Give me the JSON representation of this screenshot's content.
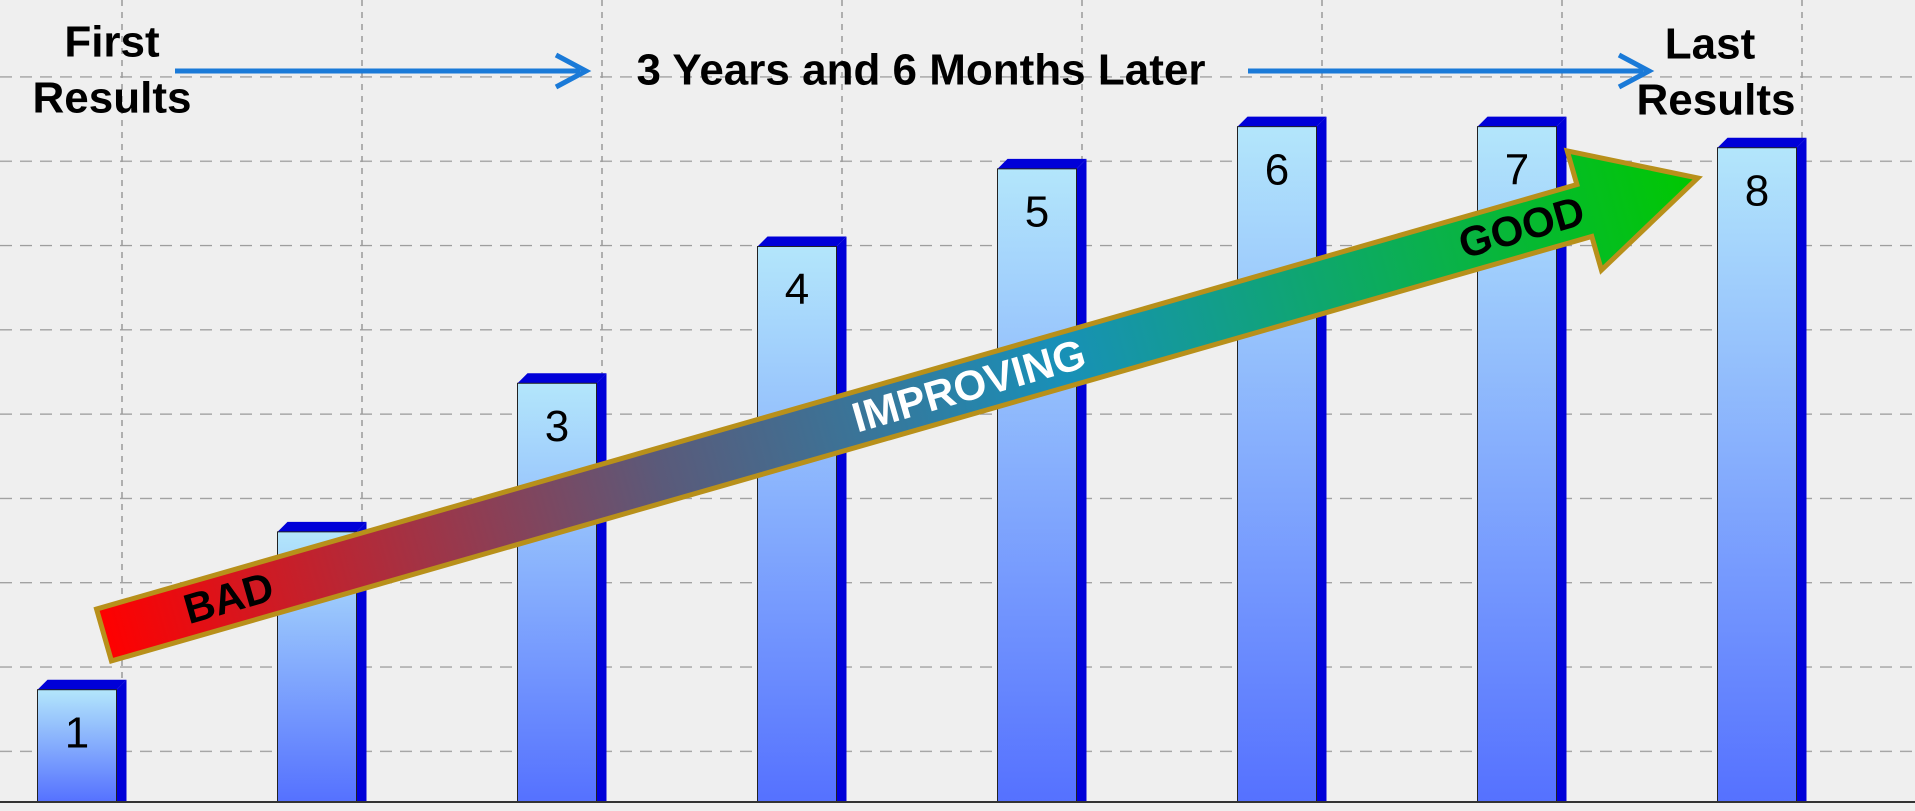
{
  "chart_data": {
    "type": "bar",
    "categories": [
      "1",
      null,
      "3",
      "4",
      "5",
      "6",
      "7",
      "8"
    ],
    "values": [
      1.33,
      3.2,
      4.96,
      6.58,
      7.5,
      8.0,
      8.0,
      7.75
    ],
    "ylim": [
      0,
      9.5
    ],
    "annotations": [
      "First",
      "Results",
      "3 Years and 6 Months Later",
      "Last",
      "Results",
      "BAD",
      "IMPROVING",
      "GOOD"
    ]
  }
}
